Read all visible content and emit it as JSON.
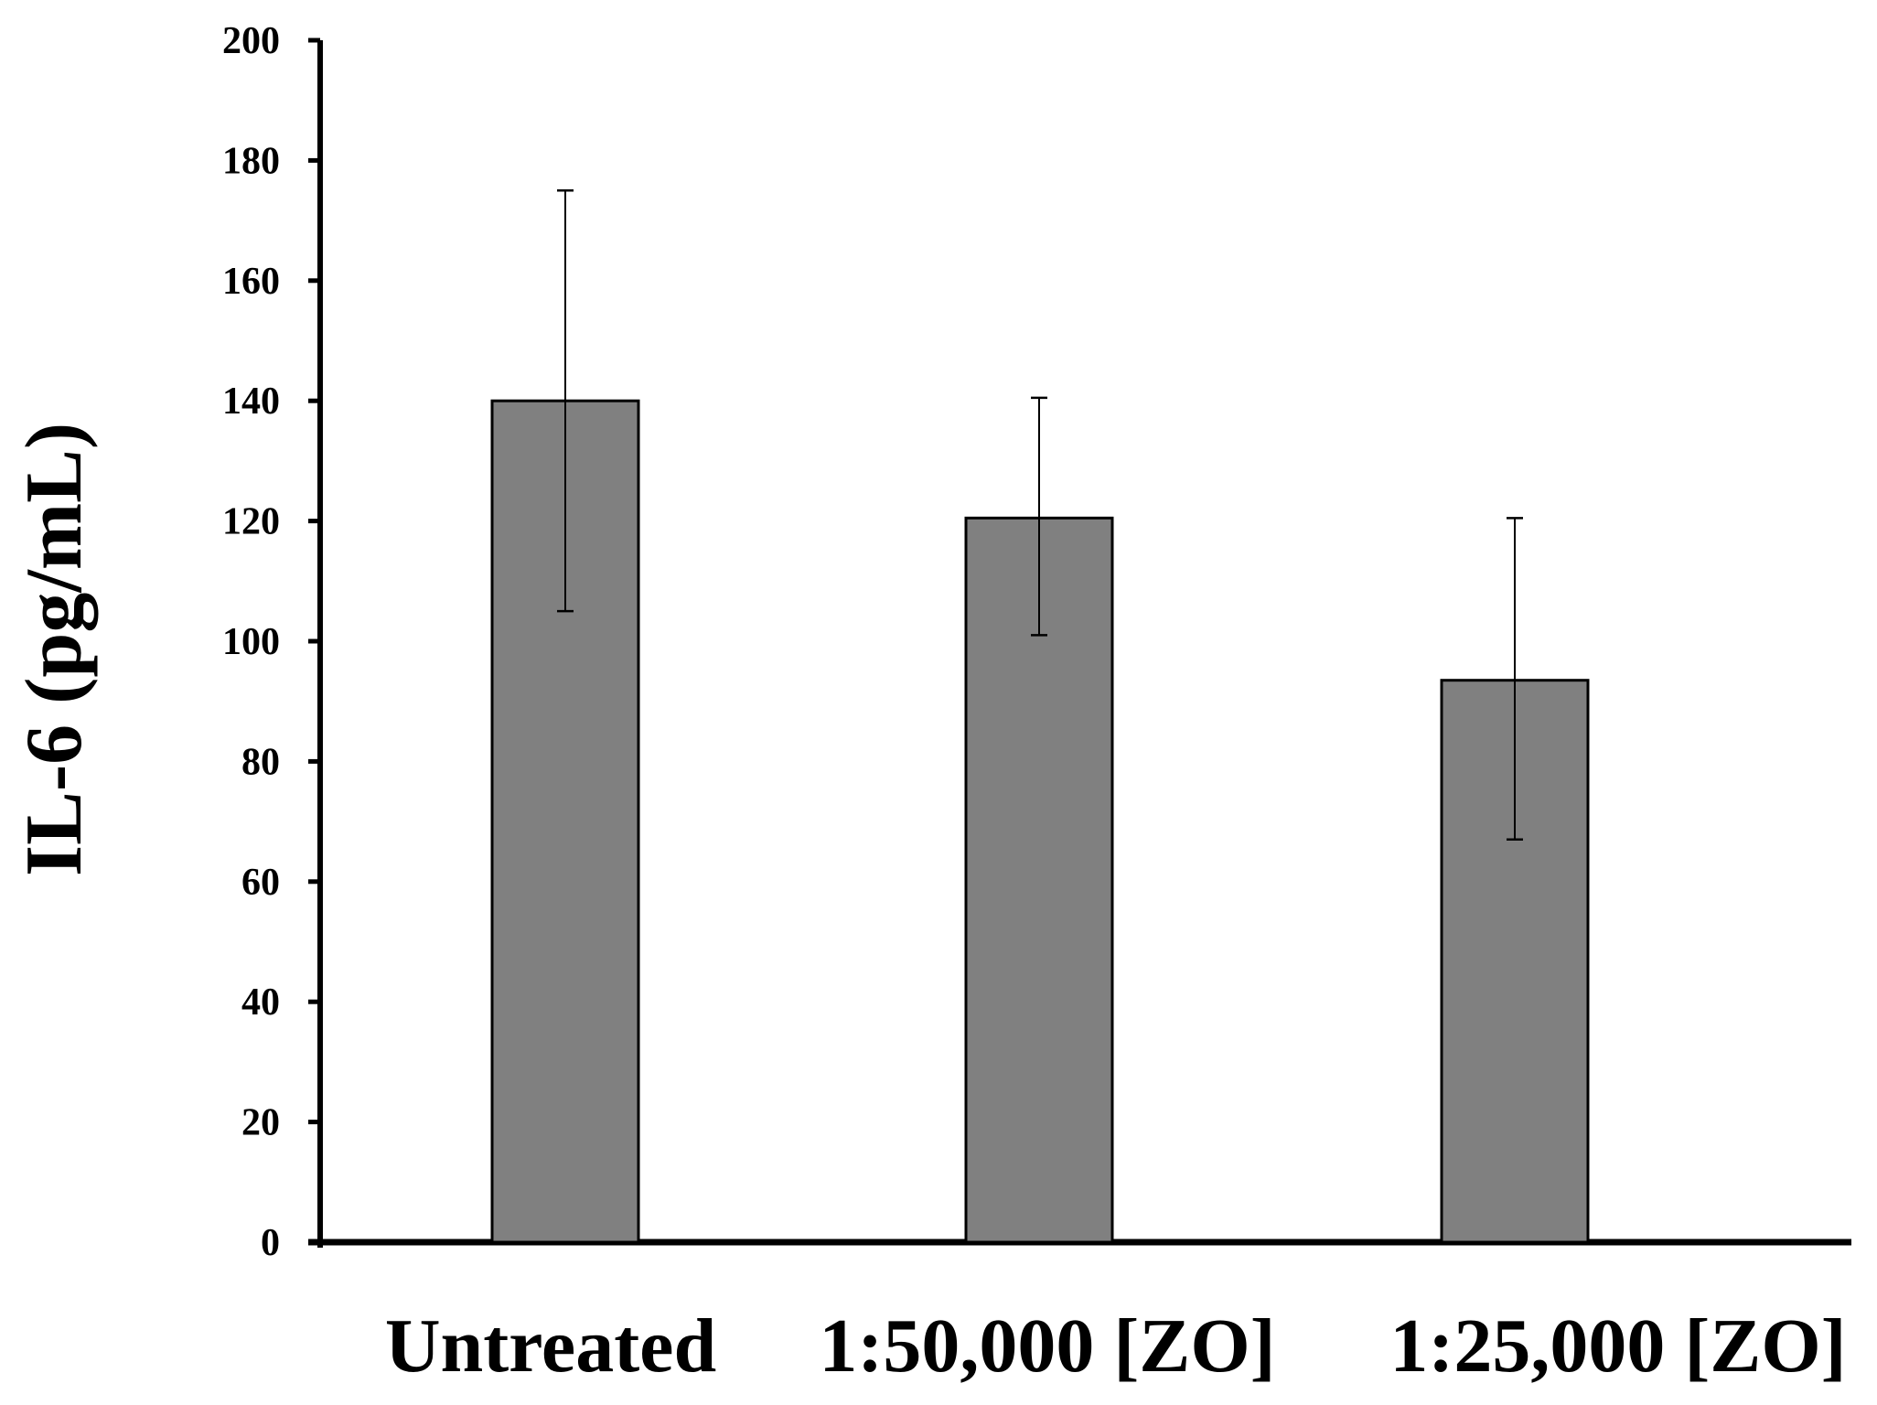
{
  "chart_data": {
    "type": "bar",
    "title": "",
    "xlabel": "",
    "ylabel": "IL-6 (pg/mL)",
    "categories": [
      "Untreated",
      "1:50,000 [ZO]",
      "1:25,000 [ZO]"
    ],
    "values": [
      140,
      120.5,
      93.5
    ],
    "error_low": [
      105,
      101,
      67
    ],
    "error_high": [
      175,
      140.5,
      120.5
    ],
    "ylim": [
      0,
      200
    ],
    "yticks": [
      "0",
      "20",
      "40",
      "60",
      "80",
      "100",
      "120",
      "140",
      "160",
      "180",
      "200"
    ],
    "grid": false,
    "legend": "none",
    "bar_color": "#808080",
    "bar_stroke": "#000000",
    "axis_color": "#000000"
  }
}
